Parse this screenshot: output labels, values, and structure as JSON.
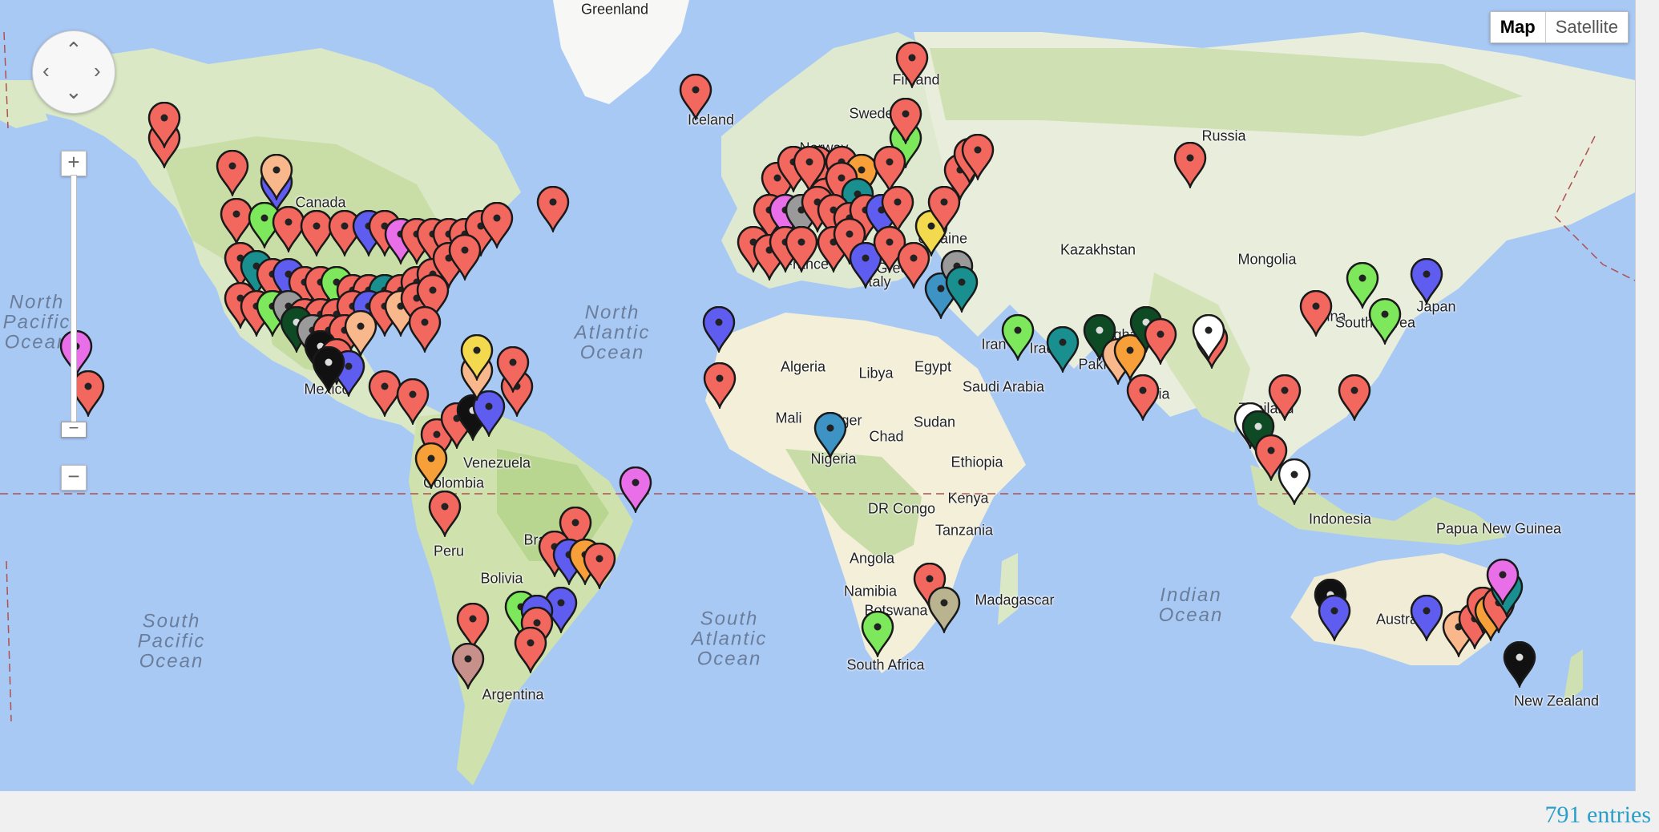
{
  "map": {
    "type_control": {
      "map_label": "Map",
      "satellite_label": "Satellite",
      "active": "map"
    },
    "pan_control": {
      "up": "⌃",
      "down": "⌄",
      "left": "‹",
      "right": "›"
    },
    "zoom_control": {
      "in_label": "+",
      "out_label": "−",
      "thumb_label": "−"
    },
    "colors": {
      "ocean": "#a9c9f5",
      "land": "#f2efe3",
      "forest": "#c5dea2",
      "equator": "#b05050"
    },
    "country_labels": [
      "Greenland",
      "Iceland",
      "Finland",
      "Sweden",
      "Norway",
      "Russia",
      "Kazakhstan",
      "Mongolia",
      "Ukraine",
      "China",
      "South Korea",
      "Japan",
      "Iran",
      "Iraq",
      "Afghanistan",
      "Pakistan",
      "India",
      "Thailand",
      "Indonesia",
      "Papua New Guinea",
      "Australia",
      "New Zealand",
      "Saudi Arabia",
      "Egypt",
      "Libya",
      "Algeria",
      "Mali",
      "Niger",
      "Chad",
      "Sudan",
      "Ethiopia",
      "Kenya",
      "Nigeria",
      "DR Congo",
      "Tanzania",
      "Angola",
      "Namibia",
      "Botswana",
      "Madagascar",
      "South Africa",
      "Venezuela",
      "Colombia",
      "Peru",
      "Brazil",
      "Bolivia",
      "Argentina",
      "Canada",
      "Mexico",
      "Greece",
      "Italy",
      "France"
    ],
    "ocean_labels": [
      "North Pacific Ocean",
      "North Atlantic Ocean",
      "South Pacific Ocean",
      "South Atlantic Ocean",
      "Indian Ocean"
    ],
    "marker_colors": {
      "red": "#f2675e",
      "blue": "#5f5cf0",
      "green": "#7de85b",
      "teal": "#1a8f8f",
      "black": "#111111",
      "white": "#ffffff",
      "orange": "#f7a03a",
      "yellow": "#f2d94e",
      "pink": "#e86fe8",
      "gray": "#9a9a9a",
      "darkgreen": "#0e4a24",
      "peach": "#f8b88b",
      "steel": "#3d93c4",
      "mauve": "#c8908a",
      "khaki": "#b9b48f"
    }
  },
  "footer": {
    "entries": "791 entries"
  }
}
